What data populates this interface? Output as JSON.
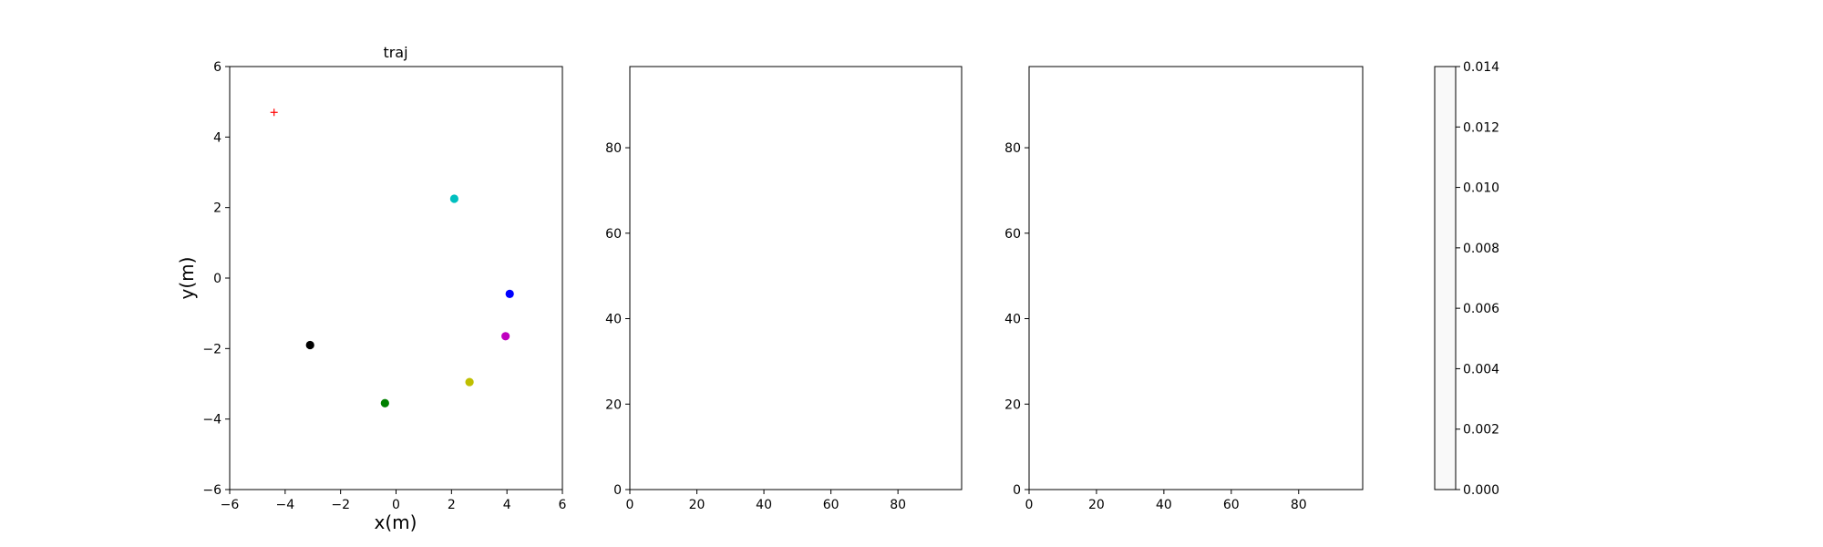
{
  "chart_data": [
    {
      "type": "scatter",
      "title": "traj",
      "xlabel": "x(m)",
      "ylabel": "y(m)",
      "xlim": [
        -6,
        6
      ],
      "ylim": [
        -6,
        6
      ],
      "xticks": [
        -6,
        -4,
        -2,
        0,
        2,
        4,
        6
      ],
      "yticks": [
        -6,
        -4,
        -2,
        0,
        2,
        4,
        6
      ],
      "grid": false,
      "points": [
        {
          "x": -4.4,
          "y": 4.7,
          "color": "#ff0000",
          "marker": "plus"
        },
        {
          "x": 2.1,
          "y": 2.25,
          "color": "#00bfbf",
          "marker": "circle"
        },
        {
          "x": 4.1,
          "y": -0.45,
          "color": "#0000ff",
          "marker": "circle"
        },
        {
          "x": -3.1,
          "y": -1.9,
          "color": "#000000",
          "marker": "circle"
        },
        {
          "x": 3.95,
          "y": -1.65,
          "color": "#bf00bf",
          "marker": "circle"
        },
        {
          "x": 2.65,
          "y": -2.95,
          "color": "#bfbf00",
          "marker": "circle"
        },
        {
          "x": -0.4,
          "y": -3.55,
          "color": "#008000",
          "marker": "circle"
        }
      ]
    },
    {
      "type": "heatmap",
      "title": "",
      "xlim": [
        0,
        99
      ],
      "ylim": [
        0,
        99
      ],
      "xticks": [
        0,
        20,
        40,
        60,
        80
      ],
      "yticks": [
        0,
        20,
        40,
        60,
        80
      ],
      "values": []
    },
    {
      "type": "heatmap",
      "title": "",
      "xlim": [
        0,
        99
      ],
      "ylim": [
        0,
        99
      ],
      "xticks": [
        0,
        20,
        40,
        60,
        80
      ],
      "yticks": [
        0,
        20,
        40,
        60,
        80
      ],
      "values": []
    }
  ],
  "colorbar": {
    "range": [
      0,
      0.014
    ],
    "ticks": [
      "0.000",
      "0.002",
      "0.004",
      "0.006",
      "0.008",
      "0.010",
      "0.012",
      "0.014"
    ],
    "color": "#f9f9f9"
  }
}
